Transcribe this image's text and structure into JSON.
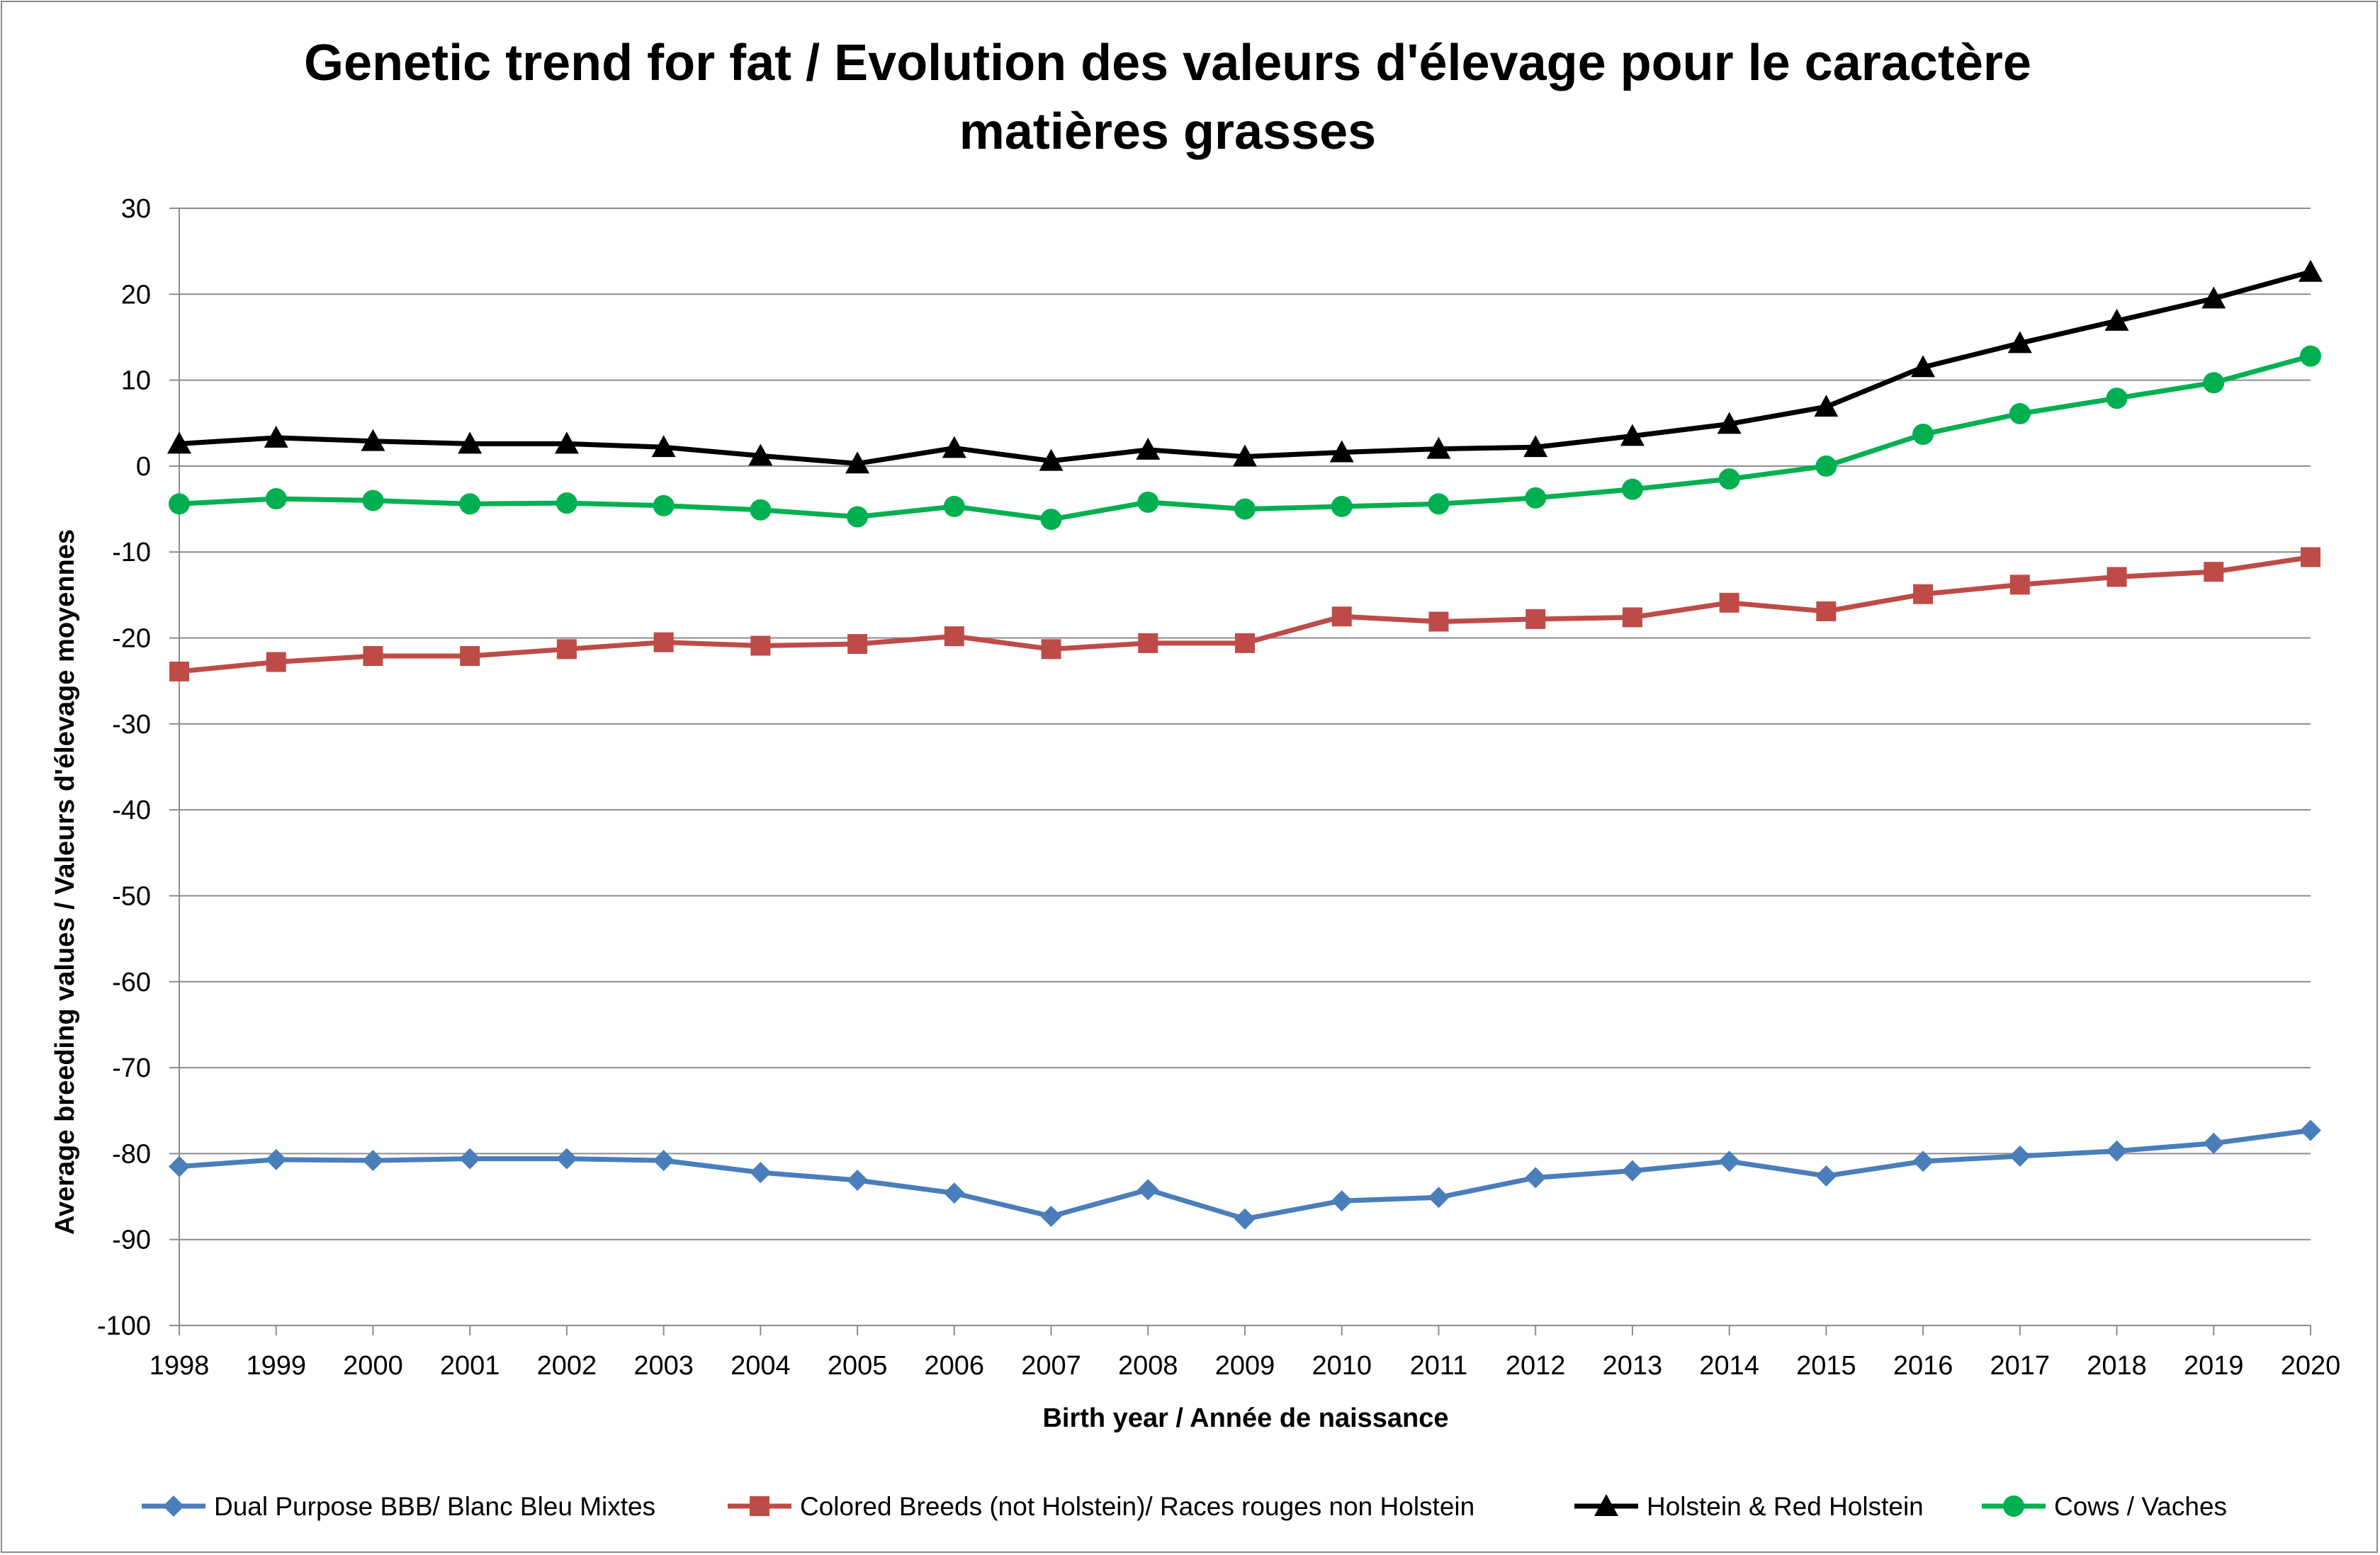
{
  "chart_data": {
    "type": "line",
    "title_line1": "Genetic trend for fat / Evolution des valeurs d'élevage pour le caractère",
    "title_line2": "matières grasses",
    "xlabel": "Birth year / Année de naissance",
    "ylabel": "Average  breeding values / Valeurs d'élevage moyennes",
    "ylim": [
      -100,
      30
    ],
    "yticks": [
      30,
      20,
      10,
      0,
      -10,
      -20,
      -30,
      -40,
      -50,
      -60,
      -70,
      -80,
      -90,
      -100
    ],
    "categories": [
      "1998",
      "1999",
      "2000",
      "2001",
      "2002",
      "2003",
      "2004",
      "2005",
      "2006",
      "2007",
      "2008",
      "2009",
      "2010",
      "2011",
      "2012",
      "2013",
      "2014",
      "2015",
      "2016",
      "2017",
      "2018",
      "2019",
      "2020"
    ],
    "grid": true,
    "legend_position": "bottom",
    "series": [
      {
        "name": "Dual Purpose BBB/ Blanc Bleu Mixtes",
        "color": "#4a7ebb",
        "marker": "diamond",
        "values": [
          -81.5,
          -80.7,
          -80.8,
          -80.6,
          -80.6,
          -80.8,
          -82.2,
          -83.1,
          -84.6,
          -87.3,
          -84.2,
          -87.6,
          -85.5,
          -85.1,
          -82.8,
          -82.0,
          -80.9,
          -82.6,
          -80.9,
          -80.3,
          -79.7,
          -78.8,
          -77.3
        ]
      },
      {
        "name": "Colored Breeds (not Holstein)/ Races rouges non Holstein",
        "color": "#be4b48",
        "marker": "square",
        "values": [
          -23.9,
          -22.8,
          -22.1,
          -22.1,
          -21.3,
          -20.5,
          -20.9,
          -20.7,
          -19.8,
          -21.3,
          -20.6,
          -20.6,
          -17.5,
          -18.1,
          -17.8,
          -17.6,
          -15.9,
          -16.9,
          -14.9,
          -13.8,
          -12.9,
          -12.3,
          -10.6
        ]
      },
      {
        "name": "Holstein & Red Holstein",
        "color": "#000000",
        "marker": "triangle",
        "values": [
          2.6,
          3.3,
          2.9,
          2.6,
          2.6,
          2.2,
          1.2,
          0.3,
          2.1,
          0.6,
          1.9,
          1.1,
          1.6,
          2.0,
          2.2,
          3.5,
          4.9,
          6.9,
          11.5,
          14.3,
          16.9,
          19.5,
          22.6
        ]
      },
      {
        "name": "Cows / Vaches",
        "color": "#00b050",
        "marker": "circle",
        "values": [
          -4.4,
          -3.8,
          -4.0,
          -4.4,
          -4.3,
          -4.6,
          -5.1,
          -5.9,
          -4.7,
          -6.2,
          -4.2,
          -5.0,
          -4.7,
          -4.4,
          -3.7,
          -2.7,
          -1.5,
          0.0,
          3.7,
          6.1,
          7.9,
          9.7,
          12.8
        ]
      }
    ]
  }
}
